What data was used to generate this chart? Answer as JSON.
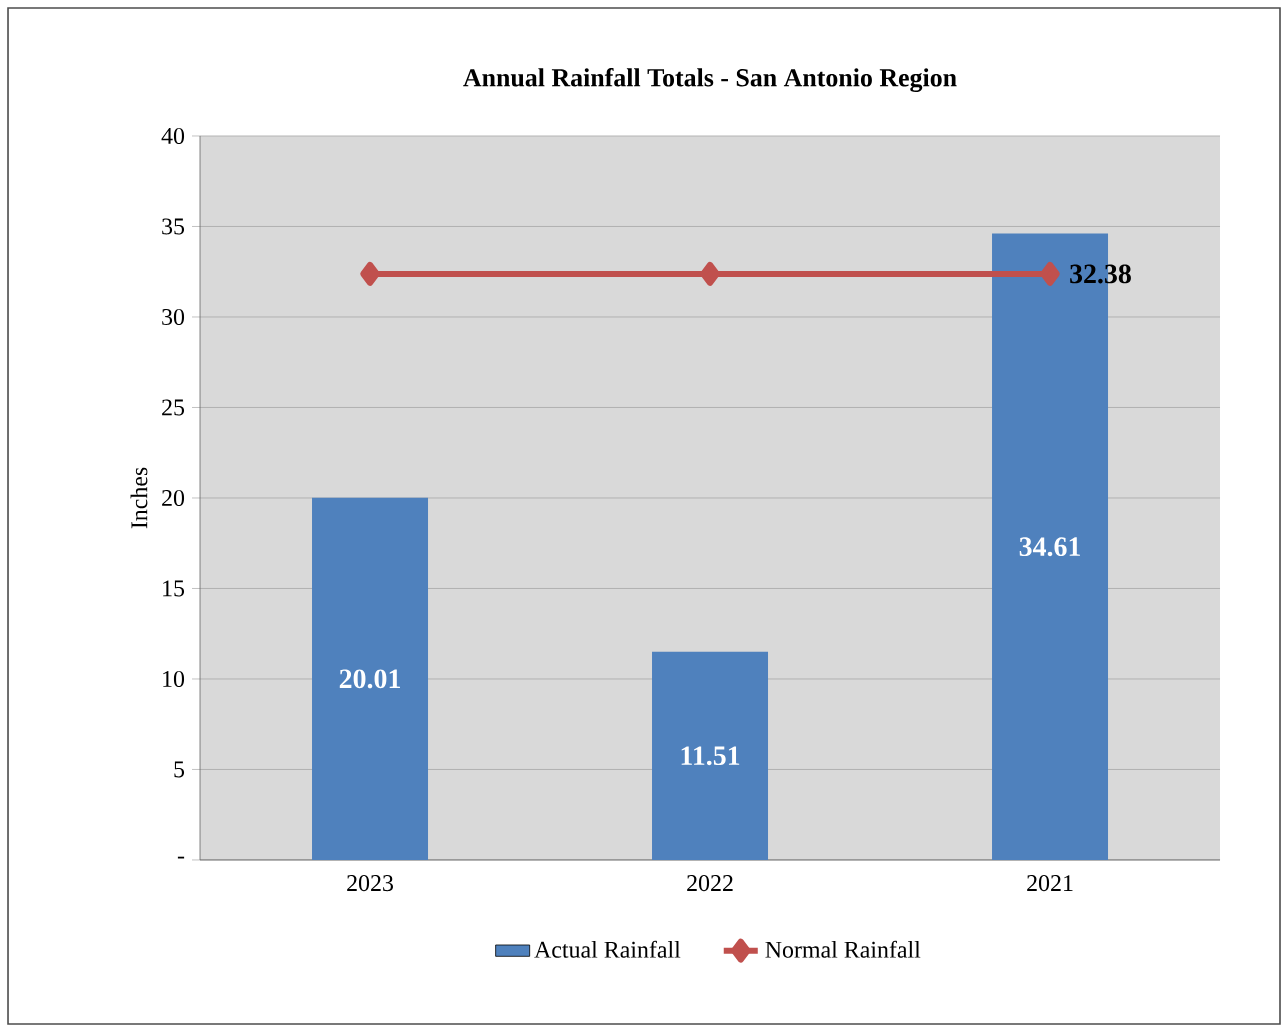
{
  "chart_data": {
    "type": "bar",
    "title": "Annual Rainfall Totals - San Antonio Region",
    "ylabel": "Inches",
    "categories": [
      "2023",
      "2022",
      "2021"
    ],
    "series": [
      {
        "name": "Actual Rainfall",
        "color": "#4f81bd",
        "values": [
          20.01,
          11.51,
          34.61
        ],
        "value_labels": [
          "20.01",
          "11.51",
          "34.61"
        ]
      },
      {
        "name": "Normal Rainfall",
        "type": "line",
        "color": "#c0504d",
        "values": [
          32.38,
          32.38,
          32.38
        ],
        "value_labels": [
          null,
          null,
          "32.38"
        ],
        "marker": "diamond"
      }
    ],
    "ylim": [
      0,
      40
    ],
    "yticks": [
      {
        "value": 0,
        "label": "-"
      },
      5,
      10,
      15,
      20,
      25,
      30,
      35,
      40
    ],
    "grid": "y",
    "legend": "bottom"
  }
}
